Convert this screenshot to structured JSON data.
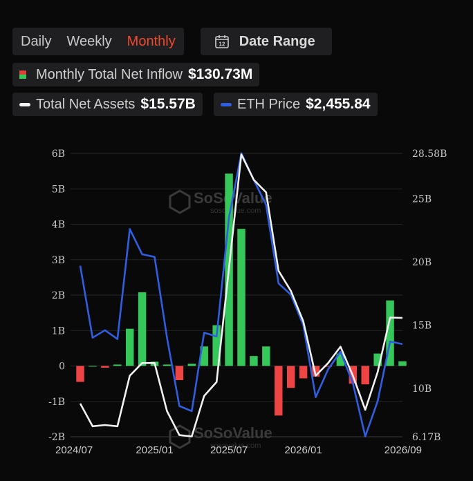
{
  "toolbar": {
    "periods": [
      "Daily",
      "Weekly",
      "Monthly"
    ],
    "active_period": "Monthly",
    "date_range_label": "Date Range",
    "calendar_day": "12"
  },
  "legend": {
    "inflow_label": "Monthly Total Net Inflow",
    "inflow_value": "$130.73M",
    "assets_label": "Total Net Assets",
    "assets_value": "$15.57B",
    "eth_label": "ETH Price",
    "eth_value": "$2,455.84"
  },
  "watermark": {
    "brand": "SoSoValue",
    "site": "sosovalue.com"
  },
  "colors": {
    "positive": "#36c75a",
    "negative": "#ef4444",
    "assets_line": "#f2f2f2",
    "eth_line": "#2f5fe0",
    "accent": "#f04a2c"
  },
  "chart_data": {
    "type": "bar",
    "x": [
      "2024/07",
      "2024/08",
      "2024/09",
      "2024/10",
      "2024/11",
      "2024/12",
      "2025/01",
      "2025/02",
      "2025/03",
      "2025/04",
      "2025/05",
      "2025/06",
      "2025/07",
      "2025/08",
      "2025/09",
      "2025/10",
      "2025/11",
      "2025/12",
      "2026/01",
      "2026/02",
      "2026/03",
      "2026/04",
      "2026/05",
      "2026/06",
      "2026/07",
      "2026/08",
      "2026/09"
    ],
    "x_tick_labels": [
      "2024/07",
      "2025/01",
      "2025/07",
      "2026/01",
      "2026/09"
    ],
    "y_left": {
      "ticks": [
        "6B",
        "5B",
        "4B",
        "3B",
        "2B",
        "1B",
        "0",
        "-1B",
        "-2B"
      ],
      "range": [
        -2,
        6
      ]
    },
    "y_right": {
      "ticks": [
        "28.58B",
        "25B",
        "20B",
        "15B",
        "10B",
        "6.17B"
      ],
      "range": [
        6.17,
        28.58
      ]
    },
    "series": [
      {
        "name": "Monthly Total Net Inflow",
        "axis": "left",
        "type": "bar",
        "values": [
          -0.45,
          0.0,
          -0.05,
          0.04,
          1.05,
          2.08,
          0.12,
          0.04,
          -0.4,
          0.06,
          0.55,
          1.15,
          5.43,
          3.87,
          0.28,
          0.55,
          -1.4,
          -0.62,
          -0.35,
          -0.3,
          -0.02,
          0.35,
          -0.5,
          -0.52,
          0.35,
          1.85,
          0.13
        ]
      },
      {
        "name": "Total Net Assets",
        "axis": "right",
        "type": "line",
        "values": [
          8.8,
          7.0,
          7.1,
          7.0,
          11.0,
          12.0,
          12.0,
          8.2,
          6.3,
          6.2,
          9.4,
          10.5,
          19.5,
          28.5,
          26.5,
          25.5,
          19.3,
          17.7,
          15.3,
          11.0,
          12.0,
          13.3,
          11.0,
          8.3,
          11.3,
          15.6,
          15.57
        ]
      },
      {
        "name": "ETH Price",
        "axis": "right",
        "type": "line",
        "values": [
          19.7,
          14.0,
          14.6,
          13.9,
          22.6,
          20.6,
          20.4,
          14.0,
          8.6,
          8.2,
          14.4,
          14.1,
          23.5,
          28.6,
          26.5,
          24.5,
          18.3,
          17.4,
          15.0,
          9.3,
          11.5,
          12.9,
          10.4,
          6.2,
          9.0,
          13.7,
          13.5
        ]
      }
    ]
  }
}
